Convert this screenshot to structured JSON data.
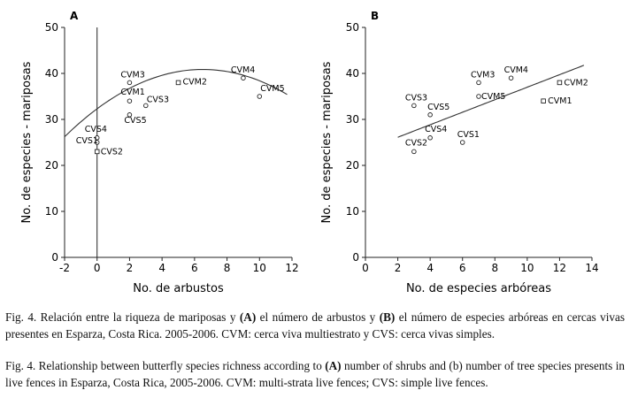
{
  "chart_data": [
    {
      "panel": "A",
      "type": "scatter",
      "xlabel": "No. de arbustos",
      "ylabel": "No. de especies - mariposas",
      "xlim": [
        -2,
        12
      ],
      "ylim": [
        0,
        50
      ],
      "xticks": [
        -2,
        0,
        2,
        4,
        6,
        8,
        10,
        12
      ],
      "yticks": [
        0,
        10,
        20,
        30,
        40,
        50
      ],
      "vertical_line_x": 0,
      "points": [
        {
          "label": "CVM3",
          "x": 2,
          "y": 38,
          "marker": "circle"
        },
        {
          "label": "CVM1",
          "x": 2,
          "y": 34,
          "marker": "circle"
        },
        {
          "label": "CVS3",
          "x": 3,
          "y": 33,
          "marker": "circle"
        },
        {
          "label": "CVS5",
          "x": 2,
          "y": 31,
          "marker": "circle"
        },
        {
          "label": "CVM2",
          "x": 5,
          "y": 38,
          "marker": "square"
        },
        {
          "label": "CVM4",
          "x": 9,
          "y": 39,
          "marker": "circle"
        },
        {
          "label": "CVM5",
          "x": 10,
          "y": 35,
          "marker": "circle"
        },
        {
          "label": "CVS4",
          "x": 0,
          "y": 26,
          "marker": "circle"
        },
        {
          "label": "CVS1",
          "x": 0,
          "y": 25,
          "marker": "circle"
        },
        {
          "label": "CVS2",
          "x": 0,
          "y": 23,
          "marker": "square"
        }
      ],
      "fit": {
        "type": "quadratic",
        "a": -0.202,
        "b": 2.63,
        "c": 32.3,
        "x_range": [
          -2,
          11.7
        ]
      }
    },
    {
      "panel": "B",
      "type": "scatter",
      "xlabel": "No. de especies arbóreas",
      "ylabel": "No. de especies - mariposas",
      "xlim": [
        0,
        14
      ],
      "ylim": [
        0,
        50
      ],
      "xticks": [
        0,
        2,
        4,
        6,
        8,
        10,
        12,
        14
      ],
      "yticks": [
        0,
        10,
        20,
        30,
        40,
        50
      ],
      "points": [
        {
          "label": "CVS3",
          "x": 3,
          "y": 33,
          "marker": "circle"
        },
        {
          "label": "CVS5",
          "x": 4,
          "y": 31,
          "marker": "circle"
        },
        {
          "label": "CVM3",
          "x": 7,
          "y": 38,
          "marker": "circle"
        },
        {
          "label": "CVM4",
          "x": 9,
          "y": 39,
          "marker": "circle"
        },
        {
          "label": "CVM5",
          "x": 7,
          "y": 35,
          "marker": "circle"
        },
        {
          "label": "CVM2",
          "x": 12,
          "y": 38,
          "marker": "square"
        },
        {
          "label": "CVM1",
          "x": 11,
          "y": 34,
          "marker": "square"
        },
        {
          "label": "CVS4",
          "x": 4,
          "y": 26,
          "marker": "circle"
        },
        {
          "label": "CVS1",
          "x": 6,
          "y": 25,
          "marker": "circle"
        },
        {
          "label": "CVS2",
          "x": 3,
          "y": 23,
          "marker": "circle"
        }
      ],
      "fit": {
        "type": "linear",
        "slope": 1.36,
        "intercept": 23.4,
        "x_range": [
          2,
          13.5
        ]
      }
    }
  ],
  "captions": {
    "es": {
      "p1": "Fig. 4. Relación entre la riqueza de mariposas y ",
      "b1": "(A)",
      "p2": " el número de arbustos y ",
      "b2": "(B)",
      "p3": " el número de especies arbóreas en cercas vivas presentes en Esparza, Costa Rica. 2005-2006. CVM: cerca viva multiestrato y CVS: cerca vivas simples."
    },
    "en": {
      "p1": "Fig. 4. Relationship between butterfly species richness according to ",
      "b1": "(A)",
      "p2": " number of shrubs and (b) number of tree species presents in live fences in Esparza, Costa Rica, 2005-2006. CVM: multi-strata live fences; CVS: simple live fences."
    }
  }
}
